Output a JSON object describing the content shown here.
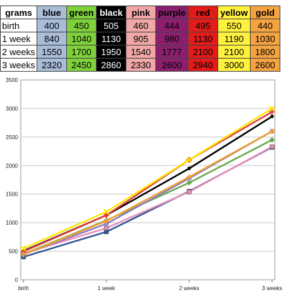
{
  "table": {
    "corner_label": "grams",
    "columns": [
      {
        "label": "blue",
        "bg": "#a9bcd8",
        "fg": "#000000"
      },
      {
        "label": "green",
        "bg": "#7ed13b",
        "fg": "#000000"
      },
      {
        "label": "black",
        "bg": "#000000",
        "fg": "#ffffff"
      },
      {
        "label": "pink",
        "bg": "#f0a7a7",
        "fg": "#000000"
      },
      {
        "label": "purple",
        "bg": "#8b1f6d",
        "fg": "#000000"
      },
      {
        "label": "red",
        "bg": "#e31b1b",
        "fg": "#000000"
      },
      {
        "label": "yellow",
        "bg": "#fff23f",
        "fg": "#000000"
      },
      {
        "label": "gold",
        "bg": "#f4a340",
        "fg": "#000000"
      }
    ],
    "rows": [
      {
        "label": "birth",
        "values": [
          "400",
          "450",
          "505",
          "460",
          "444",
          "495",
          "550",
          "440"
        ]
      },
      {
        "label": "1 week",
        "values": [
          "840",
          "1040",
          "1130",
          "905",
          "980",
          "1130",
          "1190",
          "1030"
        ]
      },
      {
        "label": "2 weeks",
        "values": [
          "1550",
          "1700",
          "1950",
          "1540",
          "1777",
          "2100",
          "2100",
          "1800"
        ]
      },
      {
        "label": "3 weeks",
        "values": [
          "2320",
          "2450",
          "2860",
          "2330",
          "2600",
          "2940",
          "3000",
          "2600"
        ]
      }
    ]
  },
  "chart_data": {
    "type": "line",
    "title": "",
    "xlabel": "",
    "ylabel": "",
    "categories": [
      "birth",
      "1 week",
      "2 weeks",
      "3 weeks"
    ],
    "ylim": [
      0,
      3500
    ],
    "yticks": [
      "0",
      "500",
      "1000",
      "1500",
      "2000",
      "2500",
      "3000",
      "3500"
    ],
    "grid": true,
    "legend": "none",
    "series": [
      {
        "color": "#2f5597",
        "marker": "square",
        "values": [
          400,
          840,
          1550,
          2320
        ]
      },
      {
        "color": "#6aa84f",
        "marker": "diamond",
        "values": [
          450,
          1040,
          1700,
          2450
        ]
      },
      {
        "color": "#000000",
        "marker": "dot",
        "values": [
          505,
          1130,
          1950,
          2860
        ]
      },
      {
        "color": "#e890b8",
        "marker": "square",
        "values": [
          460,
          905,
          1540,
          2330
        ]
      },
      {
        "color": "#8e7cc3",
        "marker": "star",
        "values": [
          444,
          980,
          1777,
          2600
        ]
      },
      {
        "color": "#e0413a",
        "marker": "plus",
        "values": [
          495,
          1130,
          2100,
          2940
        ]
      },
      {
        "color": "#ffe600",
        "marker": "cross",
        "values": [
          550,
          1190,
          2100,
          3000
        ]
      },
      {
        "color": "#f0a030",
        "marker": "plus",
        "values": [
          440,
          1030,
          1800,
          2600
        ]
      }
    ]
  }
}
